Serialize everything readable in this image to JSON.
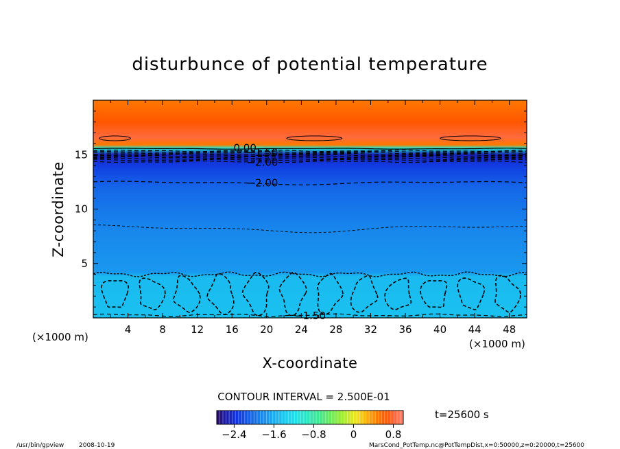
{
  "chart_data": {
    "type": "heatmap",
    "title": "disturbunce of potential temperature",
    "xlabel": "X-coordinate",
    "ylabel": "Z-coordinate",
    "x_unit_left": "(×1000 m)",
    "x_unit_right": "(×1000 m)",
    "xlim": [
      0,
      50
    ],
    "ylim": [
      0,
      20
    ],
    "x_ticks": [
      "4",
      "8",
      "12",
      "16",
      "20",
      "24",
      "28",
      "32",
      "36",
      "40",
      "44",
      "48"
    ],
    "x_tick_values": [
      4,
      8,
      12,
      16,
      20,
      24,
      28,
      32,
      36,
      40,
      44,
      48
    ],
    "y_ticks": [
      "5",
      "10",
      "15"
    ],
    "y_tick_values": [
      5,
      10,
      15
    ],
    "contour_interval_text": "CONTOUR INTERVAL = 2.500E-01",
    "time_text": "t=25600 s",
    "colorbar": {
      "min": -2.75,
      "max": 1.0,
      "tick_labels": [
        "−2.4",
        "−1.6",
        "−0.8",
        "0",
        "0.8"
      ],
      "tick_values": [
        -2.4,
        -1.6,
        -0.8,
        0,
        0.8
      ]
    },
    "contour_labels": [
      {
        "text": "0.00",
        "x": 17.5,
        "z": 15.6
      },
      {
        "text": "−1.50",
        "x": 19.5,
        "z": 15.2
      },
      {
        "text": "−2.00",
        "x": 19.5,
        "z": 14.3
      },
      {
        "text": "−2.00",
        "x": 19.5,
        "z": 12.4
      },
      {
        "text": "−1.50",
        "x": 25,
        "z": 0.2
      }
    ],
    "profile": [
      {
        "z": 0,
        "value": -1.45
      },
      {
        "z": 3.8,
        "value": -1.5
      },
      {
        "z": 4.2,
        "value": -1.75
      },
      {
        "z": 8,
        "value": -1.85
      },
      {
        "z": 10,
        "value": -1.95
      },
      {
        "z": 12,
        "value": -2.05
      },
      {
        "z": 14,
        "value": -2.3
      },
      {
        "z": 15.0,
        "value": -2.5
      },
      {
        "z": 15.6,
        "value": -1.0
      },
      {
        "z": 15.9,
        "value": 0.5
      },
      {
        "z": 16.6,
        "value": 0.85
      },
      {
        "z": 18,
        "value": 0.65
      },
      {
        "z": 20,
        "value": 0.5
      }
    ]
  },
  "footer": {
    "left_program": "/usr/bin/gpview",
    "left_date": "2008-10-19",
    "right_source": "MarsCond_PotTemp.nc@PotTempDist,x=0:50000,z=0:20000,t=25600"
  }
}
